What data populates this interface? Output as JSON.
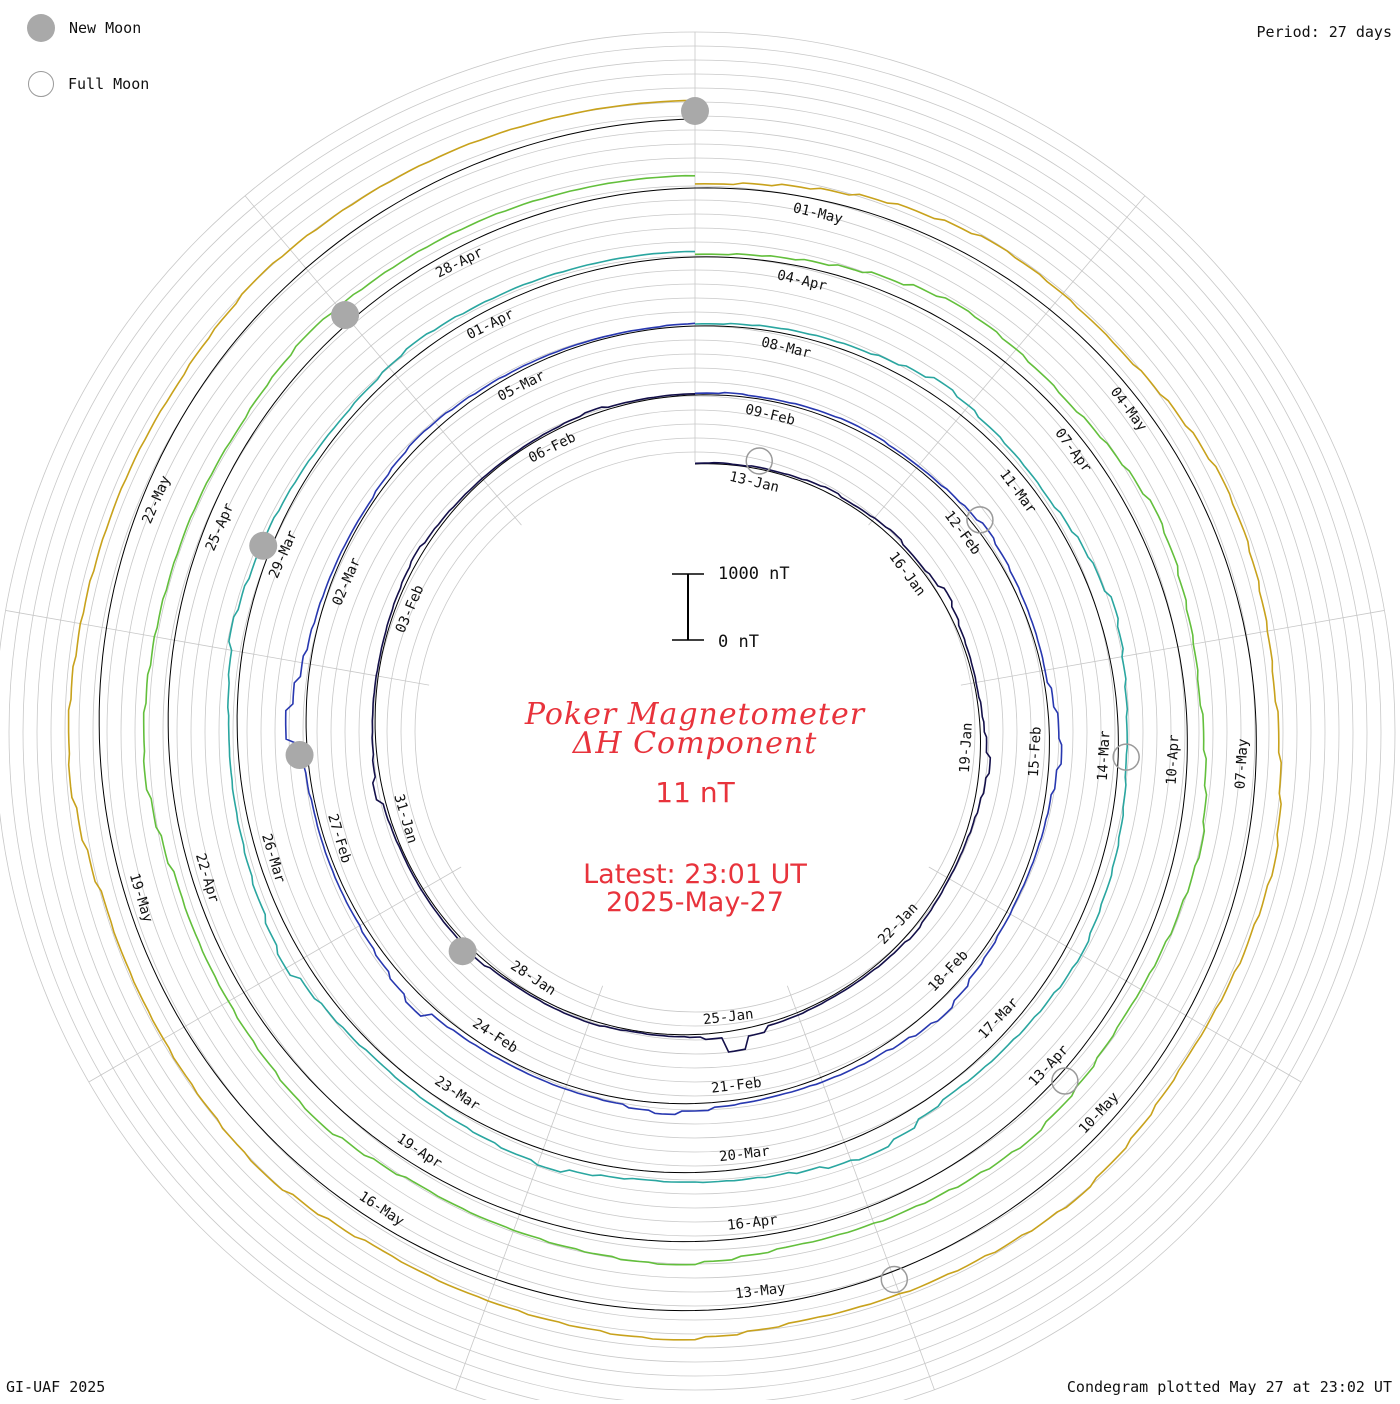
{
  "legend": {
    "new_moon_label": "New Moon",
    "full_moon_label": "Full Moon",
    "new_moon_color": "#a9a9a9",
    "full_moon_color": "#9a9a9a"
  },
  "header": {
    "period_label": "Period: 27 days"
  },
  "footer": {
    "credit": "GI-UAF 2025",
    "plotted": "Condegram plotted May 27 at 23:02 UT"
  },
  "center": {
    "title_line1": "Poker Magnetometer",
    "title_line2": "ΔH Component",
    "current_value": "11 nT",
    "latest_line1": "Latest: 23:01 UT",
    "latest_line2": "2025-May-27",
    "text_color": "#e8333c"
  },
  "scale_bar": {
    "top_label": "1000 nT",
    "bottom_label": "0 nT"
  },
  "chart_data": {
    "type": "condegram-spiral",
    "title": "Poker Magnetometer ΔH Component",
    "period_days": 27,
    "start_date": "2025-01-12",
    "end_date": "2025-05-27",
    "spiral_units": "nT",
    "scale_nT": [
      0,
      1000
    ],
    "date_labels": [
      "13-Jan",
      "16-Jan",
      "19-Jan",
      "22-Jan",
      "25-Jan",
      "28-Jan",
      "31-Jan",
      "03-Feb",
      "06-Feb",
      "09-Feb",
      "12-Feb",
      "15-Feb",
      "18-Feb",
      "21-Feb",
      "24-Feb",
      "27-Feb",
      "02-Mar",
      "05-Mar",
      "08-Mar",
      "11-Mar",
      "14-Mar",
      "17-Mar",
      "20-Mar",
      "23-Mar",
      "26-Mar",
      "29-Mar",
      "01-Apr",
      "04-Apr",
      "07-Apr",
      "10-Apr",
      "13-Apr",
      "16-Apr",
      "19-Apr",
      "22-Apr",
      "25-Apr",
      "28-Apr",
      "01-May",
      "04-May",
      "07-May",
      "10-May",
      "13-May",
      "16-May",
      "19-May",
      "22-May"
    ],
    "new_moons": [
      "2025-01-29",
      "2025-02-28",
      "2025-03-29",
      "2025-04-27",
      "2025-05-27"
    ],
    "full_moons": [
      "2025-01-13",
      "2025-02-12",
      "2025-03-14",
      "2025-04-13",
      "2025-05-12"
    ],
    "series": [
      {
        "values": [
          10,
          18,
          12,
          25,
          22,
          30,
          45,
          60,
          35,
          40,
          55,
          70,
          40,
          38,
          60,
          120,
          80,
          50,
          40,
          35,
          30,
          45,
          60,
          90,
          150,
          110,
          80,
          60,
          45,
          40,
          35,
          42,
          50,
          70,
          45,
          40,
          30,
          28,
          25,
          30,
          38,
          42,
          120,
          300,
          80,
          40,
          30,
          25,
          20,
          30,
          45,
          40,
          35,
          28,
          25,
          30,
          60,
          40,
          35,
          30,
          28,
          25,
          22,
          30,
          40,
          120,
          70,
          50,
          40,
          35,
          30,
          25,
          28,
          35,
          45,
          60,
          80,
          50,
          40,
          30,
          25,
          22,
          20,
          25,
          30,
          40,
          60,
          30,
          25,
          22,
          20,
          18
        ]
      },
      {
        "values": [
          25,
          40,
          30,
          35,
          45,
          50,
          60,
          55,
          40,
          38,
          42,
          60,
          80,
          120,
          90,
          70,
          60,
          55,
          50,
          45,
          90,
          140,
          180,
          120,
          80,
          70,
          60,
          55,
          50,
          60,
          80,
          100,
          150,
          200,
          160,
          120,
          90,
          80,
          70,
          60,
          55,
          60,
          70,
          110,
          160,
          120,
          80,
          70,
          65,
          60,
          55,
          60,
          70,
          90,
          220,
          160,
          110,
          80,
          60,
          55,
          50,
          45,
          40,
          55,
          70,
          300,
          200,
          120,
          80,
          60,
          50,
          45,
          40,
          38,
          60,
          80,
          100,
          90,
          70,
          55,
          45,
          40,
          35,
          30,
          28,
          25,
          35,
          40
        ]
      },
      {
        "values": [
          30,
          45,
          60,
          70,
          80,
          90,
          120,
          160,
          220,
          180,
          140,
          120,
          110,
          100,
          130,
          170,
          200,
          260,
          220,
          180,
          150,
          130,
          120,
          140,
          160,
          180,
          200,
          220,
          250,
          230,
          200,
          180,
          160,
          150,
          140,
          180,
          260,
          320,
          280,
          220,
          180,
          160,
          150,
          140,
          130,
          150,
          180,
          240,
          200,
          170,
          150,
          140,
          130,
          120,
          140,
          160,
          200,
          300,
          250,
          200,
          170,
          150,
          140,
          130,
          125,
          140,
          160,
          220,
          180,
          150,
          140,
          120,
          110,
          100,
          95,
          110,
          140,
          170,
          150,
          130,
          120,
          110,
          100,
          95,
          90,
          85,
          80
        ]
      },
      {
        "values": [
          40,
          60,
          80,
          110,
          150,
          200,
          260,
          300,
          280,
          250,
          220,
          200,
          230,
          260,
          300,
          350,
          320,
          280,
          250,
          230,
          210,
          240,
          280,
          320,
          360,
          330,
          300,
          270,
          250,
          240,
          260,
          300,
          340,
          380,
          350,
          320,
          290,
          270,
          250,
          240,
          230,
          260,
          300,
          340,
          320,
          290,
          270,
          250,
          240,
          230,
          220,
          260,
          300,
          350,
          330,
          300,
          280,
          260,
          250,
          240,
          230,
          280,
          330,
          380,
          360,
          330,
          300,
          280,
          260,
          250,
          240,
          230,
          220,
          240,
          260,
          290,
          270,
          250,
          240,
          230,
          220,
          210,
          200,
          195,
          190,
          185,
          180
        ]
      },
      {
        "values": [
          60,
          90,
          130,
          170,
          220,
          260,
          300,
          340,
          320,
          300,
          280,
          270,
          300,
          340,
          380,
          420,
          400,
          370,
          340,
          320,
          300,
          330,
          370,
          410,
          450,
          420,
          390,
          360,
          340,
          330,
          350,
          390,
          430,
          470,
          440,
          410,
          380,
          360,
          340,
          330,
          320,
          350,
          390,
          430,
          410,
          380,
          360,
          340,
          330,
          320,
          310,
          350,
          390,
          440,
          420,
          390,
          370,
          350,
          340,
          330,
          320,
          370,
          420,
          470,
          450,
          420,
          390,
          370,
          350,
          340,
          330,
          320,
          310,
          330,
          350,
          380,
          360,
          340,
          330,
          320,
          310,
          300,
          290,
          285,
          280,
          275,
          270
        ]
      }
    ]
  }
}
